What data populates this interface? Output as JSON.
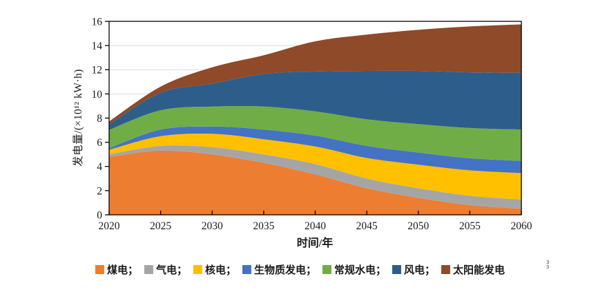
{
  "chart_data": {
    "type": "area",
    "stacked": true,
    "title": "",
    "xlabel": "时间/年",
    "ylabel": "发电量/(×10¹² kW·h)",
    "x": [
      2020,
      2025,
      2030,
      2035,
      2040,
      2045,
      2050,
      2055,
      2060
    ],
    "xlim": [
      2020,
      2060
    ],
    "xtick_step": 5,
    "ylim": [
      0,
      16
    ],
    "ytick_step": 2,
    "yticks": [
      0,
      2,
      4,
      6,
      8,
      10,
      12,
      14,
      16
    ],
    "grid": "horizontal",
    "gridline_color": "#d9d9d9",
    "axis_color": "#000000",
    "plot_border": "box",
    "legend_position": "bottom",
    "series": [
      {
        "key": "coal",
        "name": "煤电",
        "display": "煤电；",
        "color": "#ED7D31",
        "values": [
          4.8,
          5.3,
          5.0,
          4.3,
          3.35,
          2.2,
          1.4,
          0.8,
          0.5
        ]
      },
      {
        "key": "gas",
        "name": "气电",
        "display": "气电；",
        "color": "#A5A5A5",
        "values": [
          0.2,
          0.4,
          0.6,
          0.7,
          0.85,
          0.8,
          0.8,
          0.78,
          0.75
        ]
      },
      {
        "key": "nuclear",
        "name": "核电",
        "display": "核电；",
        "color": "#FFC000",
        "values": [
          0.37,
          0.8,
          1.1,
          1.25,
          1.45,
          1.7,
          1.95,
          2.1,
          2.2
        ]
      },
      {
        "key": "biomass",
        "name": "生物质发电",
        "display": "生物质发电；",
        "color": "#4472C4",
        "values": [
          0.15,
          0.55,
          0.6,
          0.8,
          0.9,
          1.0,
          1.0,
          1.0,
          1.0
        ]
      },
      {
        "key": "hydro",
        "name": "常规水电",
        "display": "常规水电；",
        "color": "#70AD47",
        "values": [
          1.5,
          1.6,
          1.65,
          1.9,
          2.0,
          2.2,
          2.35,
          2.5,
          2.6
        ]
      },
      {
        "key": "wind",
        "name": "风电",
        "display": "风电；",
        "color": "#2D5E8B",
        "values": [
          0.45,
          1.45,
          1.9,
          2.7,
          3.3,
          4.0,
          4.4,
          4.6,
          4.7
        ]
      },
      {
        "key": "solar",
        "name": "太阳能发电",
        "display": "太阳能发电",
        "color": "#8F4A2A",
        "values": [
          0.25,
          0.5,
          1.35,
          1.55,
          2.5,
          3.0,
          3.4,
          3.8,
          4.0
        ]
      }
    ]
  },
  "corner_artifact": {
    "lines": [
      "3",
      "3"
    ]
  }
}
